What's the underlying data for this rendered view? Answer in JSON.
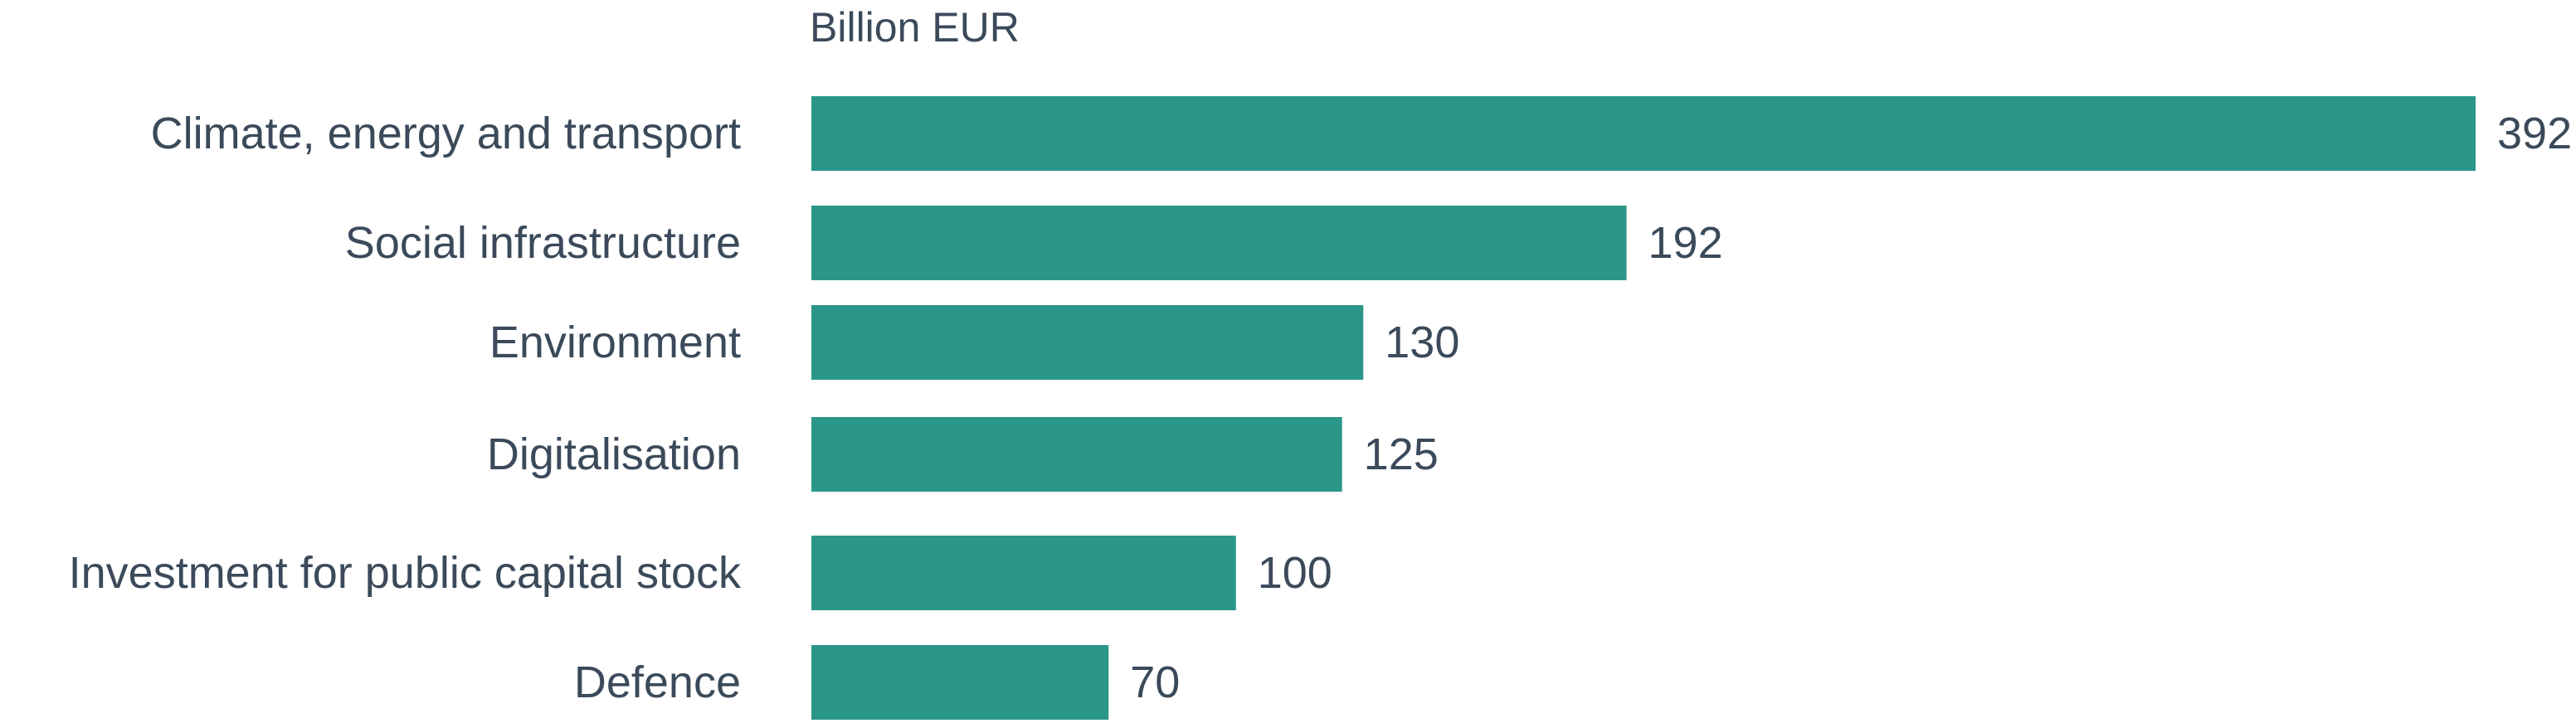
{
  "chart_data": {
    "type": "bar",
    "orientation": "horizontal",
    "unit_label": "Billion EUR",
    "categories": [
      "Climate, energy and transport",
      "Social infrastructure",
      "Environment",
      "Digitalisation",
      "Investment for public capital stock",
      "Defence"
    ],
    "values": [
      392,
      192,
      130,
      125,
      100,
      70
    ],
    "xlim": [
      0,
      392
    ],
    "grid": false,
    "legend": "none",
    "bar_color": "#2a9688",
    "text_color": "#3b4a5a"
  }
}
